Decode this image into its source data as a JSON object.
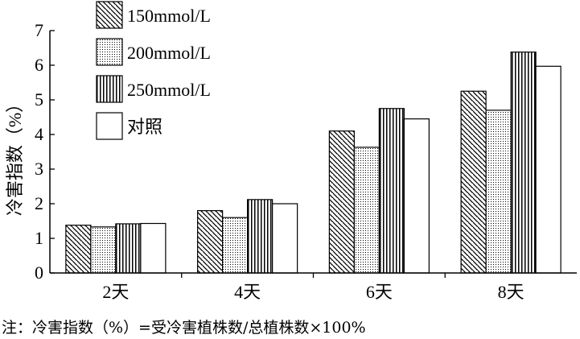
{
  "chart_data": {
    "type": "bar",
    "title": "",
    "xlabel": "",
    "ylabel": "冷害指数（%）",
    "ylim": [
      0,
      7
    ],
    "yticks": [
      0,
      1,
      2,
      3,
      4,
      5,
      6,
      7
    ],
    "grid": false,
    "legend_position": "top-left",
    "categories": [
      "2天",
      "4天",
      "6天",
      "8天"
    ],
    "series": [
      {
        "name": "150mmol/L",
        "pattern": "diagonal-hatch",
        "values": [
          1.38,
          1.8,
          4.1,
          5.25
        ]
      },
      {
        "name": "200mmol/L",
        "pattern": "dotted",
        "values": [
          1.33,
          1.6,
          3.63,
          4.7
        ]
      },
      {
        "name": "250mmol/L",
        "pattern": "vertical-lines",
        "values": [
          1.42,
          2.12,
          4.75,
          6.38
        ]
      },
      {
        "name": "对照",
        "pattern": "blank",
        "values": [
          1.43,
          2.0,
          4.45,
          5.97
        ]
      }
    ]
  },
  "note": "注：冷害指数（%）=受冷害植株数/总植株数×100%"
}
